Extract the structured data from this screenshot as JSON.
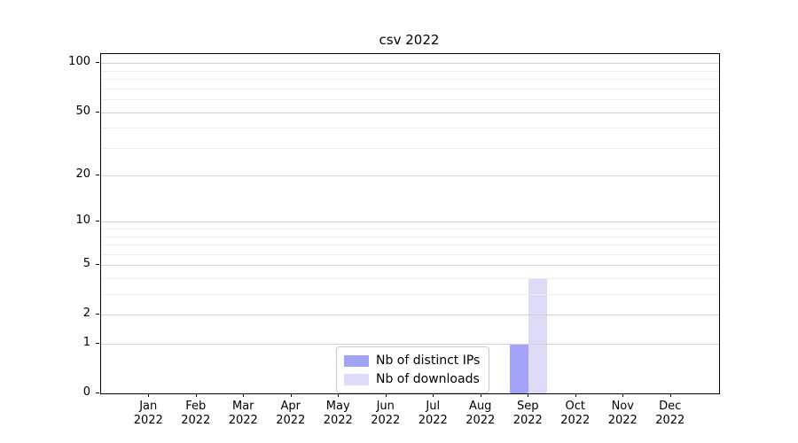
{
  "chart_data": {
    "type": "bar",
    "title": "csv 2022",
    "xlabel": "",
    "ylabel": "",
    "categories": [
      "Jan 2022",
      "Feb 2022",
      "Mar 2022",
      "Apr 2022",
      "May 2022",
      "Jun 2022",
      "Jul 2022",
      "Aug 2022",
      "Sep 2022",
      "Oct 2022",
      "Nov 2022",
      "Dec 2022"
    ],
    "series": [
      {
        "name": "Nb of distinct IPs",
        "color": "#a3a3f7",
        "values": [
          0,
          0,
          0,
          0,
          0,
          0,
          0,
          0,
          1,
          0,
          0,
          0
        ]
      },
      {
        "name": "Nb of downloads",
        "color": "#dcdcf9",
        "values": [
          0,
          0,
          0,
          0,
          0,
          0,
          0,
          0,
          4,
          0,
          0,
          0
        ]
      }
    ],
    "y_scale": "log1p",
    "y_ticks": [
      0,
      1,
      2,
      5,
      10,
      20,
      50,
      100
    ],
    "y_minor_ticks": [
      3,
      4,
      6,
      7,
      8,
      9,
      30,
      40,
      60,
      70,
      80,
      90
    ],
    "ylim": [
      0,
      114
    ],
    "grid": "both",
    "legend_position": "lower center",
    "legend_labels": [
      "Nb of distinct IPs",
      "Nb of downloads"
    ]
  }
}
